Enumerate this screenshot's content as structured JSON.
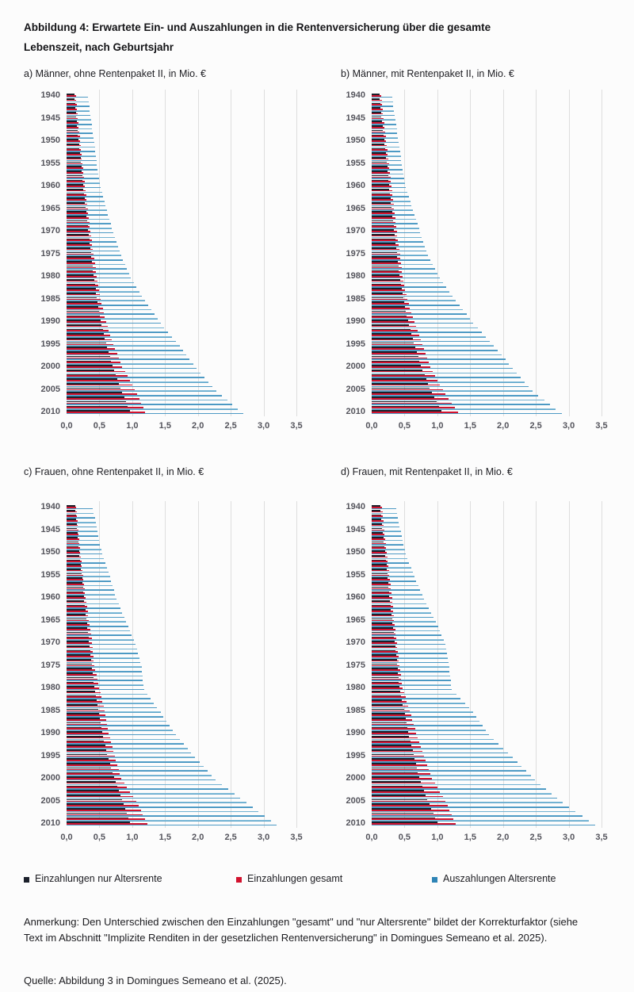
{
  "figure": {
    "title": "Abbildung 4: Erwartete Ein- und Auszahlungen in die Rentenversicherung über die gesamte Lebenszeit, nach Geburtsjahr",
    "note": "Anmerkung: Den Unterschied zwischen den Einzahlungen \"gesamt\" und \"nur Altersrente\" bildet der Korrekturfaktor (siehe Text im Abschnitt \"Implizite Renditen in der gesetzlichen Rentenversicherung\" in Domingues Semeano et al. 2025).",
    "source": "Quelle: Abbildung 3 in Domingues Semeano et al. (2025)."
  },
  "legend": [
    {
      "label": "Einzahlungen nur Altersrente",
      "color": "#1b202b"
    },
    {
      "label": "Einzahlungen gesamt",
      "color": "#d2122e"
    },
    {
      "label": "Auszahlungen Altersrente",
      "color": "#2e84b6"
    }
  ],
  "colors": {
    "black_bar": "#1b202b",
    "red_bar": "#d2122e",
    "blue_bar": "#2e84b6",
    "gridline": "#dedede"
  },
  "chart_data": [
    {
      "id": "a",
      "type": "bar",
      "orientation": "horizontal",
      "title": "a) Männer, ohne Rentenpaket II, in Mio. €",
      "unit": "Mio. €",
      "xlim": [
        0,
        3.5
      ],
      "xticks": [
        "0,0",
        "0,5",
        "1,0",
        "1,5",
        "2,0",
        "2,5",
        "3,0",
        "3,5"
      ],
      "ytick_years": [
        1940,
        1945,
        1950,
        1955,
        1960,
        1965,
        1970,
        1975,
        1980,
        1985,
        1990,
        1995,
        2000,
        2005,
        2010
      ],
      "bars_for_every_year_from": 1940,
      "bars_for_every_year_to": 2010,
      "anchor_years": [
        1940,
        1945,
        1950,
        1955,
        1960,
        1965,
        1970,
        1975,
        1980,
        1985,
        1990,
        1995,
        2000,
        2005,
        2010
      ],
      "series": [
        {
          "name": "Einzahlungen nur Altersrente",
          "key": "einzahlungen-nur-altersrente",
          "values": [
            0.12,
            0.15,
            0.18,
            0.22,
            0.25,
            0.29,
            0.33,
            0.37,
            0.41,
            0.46,
            0.52,
            0.6,
            0.7,
            0.82,
            0.96
          ]
        },
        {
          "name": "Einzahlungen gesamt",
          "key": "einzahlungen-gesamt",
          "values": [
            0.14,
            0.17,
            0.21,
            0.24,
            0.28,
            0.32,
            0.36,
            0.41,
            0.46,
            0.52,
            0.6,
            0.71,
            0.85,
            1.04,
            1.2
          ]
        },
        {
          "name": "Auszahlungen Altersrente",
          "key": "auszahlungen-altersrente",
          "values": [
            0.33,
            0.37,
            0.42,
            0.46,
            0.52,
            0.61,
            0.71,
            0.83,
            0.98,
            1.19,
            1.43,
            1.72,
            1.98,
            2.28,
            2.69
          ]
        }
      ]
    },
    {
      "id": "b",
      "type": "bar",
      "orientation": "horizontal",
      "title": "b) Männer, mit Rentenpaket II, in Mio. €",
      "unit": "Mio. €",
      "xlim": [
        0,
        3.5
      ],
      "xticks": [
        "0,0",
        "0,5",
        "1,0",
        "1,5",
        "2,0",
        "2,5",
        "3,0",
        "3,5"
      ],
      "ytick_years": [
        1940,
        1945,
        1950,
        1955,
        1960,
        1965,
        1970,
        1975,
        1980,
        1985,
        1990,
        1995,
        2000,
        2005,
        2010
      ],
      "bars_for_every_year_from": 1940,
      "bars_for_every_year_to": 2010,
      "anchor_years": [
        1940,
        1945,
        1950,
        1955,
        1960,
        1965,
        1970,
        1975,
        1980,
        1985,
        1990,
        1995,
        2000,
        2005,
        2010
      ],
      "series": [
        {
          "name": "Einzahlungen nur Altersrente",
          "key": "einzahlungen-nur-altersrente",
          "values": [
            0.12,
            0.15,
            0.19,
            0.23,
            0.26,
            0.3,
            0.34,
            0.38,
            0.42,
            0.48,
            0.55,
            0.64,
            0.75,
            0.88,
            1.06
          ]
        },
        {
          "name": "Einzahlungen gesamt",
          "key": "einzahlungen-gesamt",
          "values": [
            0.15,
            0.18,
            0.22,
            0.26,
            0.3,
            0.34,
            0.38,
            0.43,
            0.47,
            0.54,
            0.65,
            0.77,
            0.89,
            1.08,
            1.31
          ]
        },
        {
          "name": "Auszahlungen Altersrente",
          "key": "auszahlungen-altersrente",
          "values": [
            0.31,
            0.36,
            0.41,
            0.46,
            0.52,
            0.63,
            0.74,
            0.86,
            1.04,
            1.28,
            1.55,
            1.86,
            2.15,
            2.45,
            2.89
          ]
        }
      ]
    },
    {
      "id": "c",
      "type": "bar",
      "orientation": "horizontal",
      "title": "c) Frauen, ohne Rentenpaket II, in Mio. €",
      "unit": "Mio. €",
      "xlim": [
        0,
        3.5
      ],
      "xticks": [
        "0,0",
        "0,5",
        "1,0",
        "1,5",
        "2,0",
        "2,5",
        "3,0",
        "3,5"
      ],
      "ytick_years": [
        1940,
        1945,
        1950,
        1955,
        1960,
        1965,
        1970,
        1975,
        1980,
        1985,
        1990,
        1995,
        2000,
        2005,
        2010
      ],
      "bars_for_every_year_from": 1940,
      "bars_for_every_year_to": 2010,
      "anchor_years": [
        1940,
        1945,
        1950,
        1955,
        1960,
        1965,
        1970,
        1975,
        1980,
        1985,
        1990,
        1995,
        2000,
        2005,
        2010
      ],
      "series": [
        {
          "name": "Einzahlungen nur Altersrente",
          "key": "einzahlungen-nur-altersrente",
          "values": [
            0.13,
            0.16,
            0.19,
            0.23,
            0.26,
            0.3,
            0.34,
            0.38,
            0.42,
            0.48,
            0.54,
            0.62,
            0.72,
            0.84,
            0.97
          ]
        },
        {
          "name": "Einzahlungen gesamt",
          "key": "einzahlungen-gesamt",
          "values": [
            0.15,
            0.18,
            0.21,
            0.25,
            0.29,
            0.34,
            0.39,
            0.42,
            0.5,
            0.58,
            0.64,
            0.73,
            0.83,
            1.06,
            1.23
          ]
        },
        {
          "name": "Auszahlungen Altersrente",
          "key": "auszahlungen-altersrente",
          "values": [
            0.4,
            0.47,
            0.54,
            0.66,
            0.76,
            0.91,
            1.05,
            1.14,
            1.18,
            1.43,
            1.66,
            1.96,
            2.27,
            2.74,
            3.2
          ]
        }
      ]
    },
    {
      "id": "d",
      "type": "bar",
      "orientation": "horizontal",
      "title": "d) Frauen, mit Rentenpaket II, in Mio. €",
      "unit": "Mio. €",
      "xlim": [
        0,
        3.5
      ],
      "xticks": [
        "0,0",
        "0,5",
        "1,0",
        "1,5",
        "2,0",
        "2,5",
        "3,0",
        "3,5"
      ],
      "ytick_years": [
        1940,
        1945,
        1950,
        1955,
        1960,
        1965,
        1970,
        1975,
        1980,
        1985,
        1990,
        1995,
        2000,
        2005,
        2010
      ],
      "bars_for_every_year_from": 1940,
      "bars_for_every_year_to": 2010,
      "anchor_years": [
        1940,
        1945,
        1950,
        1955,
        1960,
        1965,
        1970,
        1975,
        1980,
        1985,
        1990,
        1995,
        2000,
        2005,
        2010
      ],
      "series": [
        {
          "name": "Einzahlungen nur Altersrente",
          "key": "einzahlungen-nur-altersrente",
          "values": [
            0.13,
            0.16,
            0.2,
            0.24,
            0.27,
            0.31,
            0.35,
            0.39,
            0.42,
            0.49,
            0.55,
            0.64,
            0.72,
            0.85,
            1.0
          ]
        },
        {
          "name": "Einzahlungen gesamt",
          "key": "einzahlungen-gesamt",
          "values": [
            0.16,
            0.19,
            0.23,
            0.27,
            0.31,
            0.34,
            0.38,
            0.42,
            0.47,
            0.58,
            0.68,
            0.8,
            0.92,
            1.12,
            1.28
          ]
        },
        {
          "name": "Auszahlungen Altersrente",
          "key": "auszahlungen-altersrente",
          "values": [
            0.37,
            0.44,
            0.52,
            0.65,
            0.8,
            0.98,
            1.12,
            1.18,
            1.22,
            1.55,
            1.79,
            2.15,
            2.49,
            2.91,
            3.4
          ]
        }
      ]
    }
  ]
}
